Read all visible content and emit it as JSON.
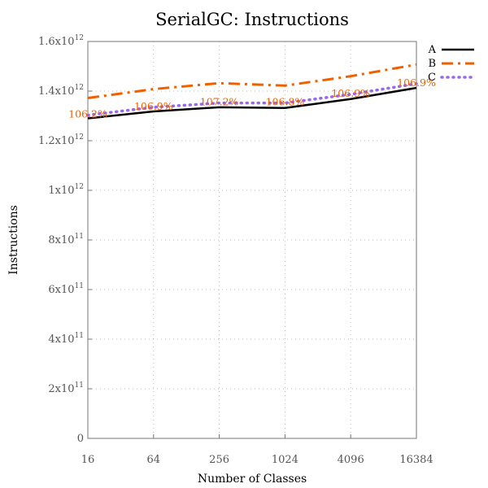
{
  "chart_data": {
    "type": "line",
    "title": "SerialGC: Instructions",
    "xlabel": "Number of Classes",
    "ylabel": "Instructions",
    "categories": [
      "16",
      "64",
      "256",
      "1024",
      "4096",
      "16384"
    ],
    "ylim": [
      0,
      1600000000000
    ],
    "yticks": [
      {
        "value": 0,
        "base": "0",
        "exp": ""
      },
      {
        "value": 200000000000,
        "base": "2x10",
        "exp": "11"
      },
      {
        "value": 400000000000,
        "base": "4x10",
        "exp": "11"
      },
      {
        "value": 600000000000,
        "base": "6x10",
        "exp": "11"
      },
      {
        "value": 800000000000,
        "base": "8x10",
        "exp": "11"
      },
      {
        "value": 1000000000000,
        "base": "1x10",
        "exp": "12"
      },
      {
        "value": 1200000000000,
        "base": "1.2x10",
        "exp": "12"
      },
      {
        "value": 1400000000000,
        "base": "1.4x10",
        "exp": "12"
      },
      {
        "value": 1600000000000,
        "base": "1.6x10",
        "exp": "12"
      }
    ],
    "grid": true,
    "legend_position": "top-right",
    "series": [
      {
        "name": "A",
        "color": "#000000",
        "style": "solid",
        "values": [
          1290000000000,
          1318000000000,
          1335000000000,
          1332000000000,
          1368000000000,
          1413000000000
        ]
      },
      {
        "name": "B",
        "color": "#f06000",
        "style": "dashdot",
        "values": [
          1372000000000,
          1408000000000,
          1432000000000,
          1422000000000,
          1460000000000,
          1507000000000
        ]
      },
      {
        "name": "C",
        "color": "#9966ee",
        "style": "dotted",
        "values": [
          1303000000000,
          1335000000000,
          1352000000000,
          1352000000000,
          1387000000000,
          1430000000000
        ]
      }
    ],
    "data_labels": {
      "color": "#f06000",
      "texts": [
        "106.2%",
        "106.9%",
        "107.2%",
        "106.8%",
        "106.9%",
        "106.9%"
      ]
    }
  }
}
